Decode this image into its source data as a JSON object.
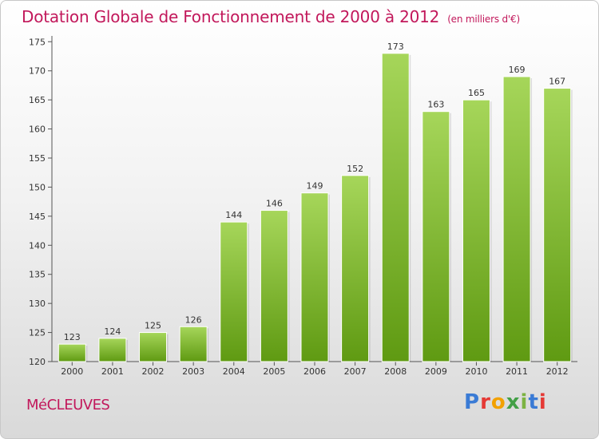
{
  "header": {
    "title": "Dotation Globale de Fonctionnement de 2000 à 2012",
    "unit": "(en milliers d'€)"
  },
  "footer": {
    "commune": "MéCLEUVES",
    "logo": "Proxiti"
  },
  "colors": {
    "title": "#c2185b",
    "bar_light": "#a6d65a",
    "bar_dark": "#5f9a12",
    "logo_letters": [
      "#3a7bd5",
      "#e53935",
      "#f2a100",
      "#43a047",
      "#7cb342",
      "#3a7bd5",
      "#e53935"
    ]
  },
  "chart_data": {
    "type": "bar",
    "title": "Dotation Globale de Fonctionnement de 2000 à 2012",
    "subtitle": "(en milliers d'€)",
    "categories": [
      "2000",
      "2001",
      "2002",
      "2003",
      "2004",
      "2005",
      "2006",
      "2007",
      "2008",
      "2009",
      "2010",
      "2011",
      "2012"
    ],
    "values": [
      123,
      124,
      125,
      126,
      144,
      146,
      149,
      152,
      173,
      163,
      165,
      169,
      167
    ],
    "ylim": [
      120,
      176
    ],
    "yticks": [
      120,
      125,
      130,
      135,
      140,
      145,
      150,
      155,
      160,
      165,
      170,
      175
    ],
    "grid": false,
    "xlabel": "",
    "ylabel": ""
  }
}
